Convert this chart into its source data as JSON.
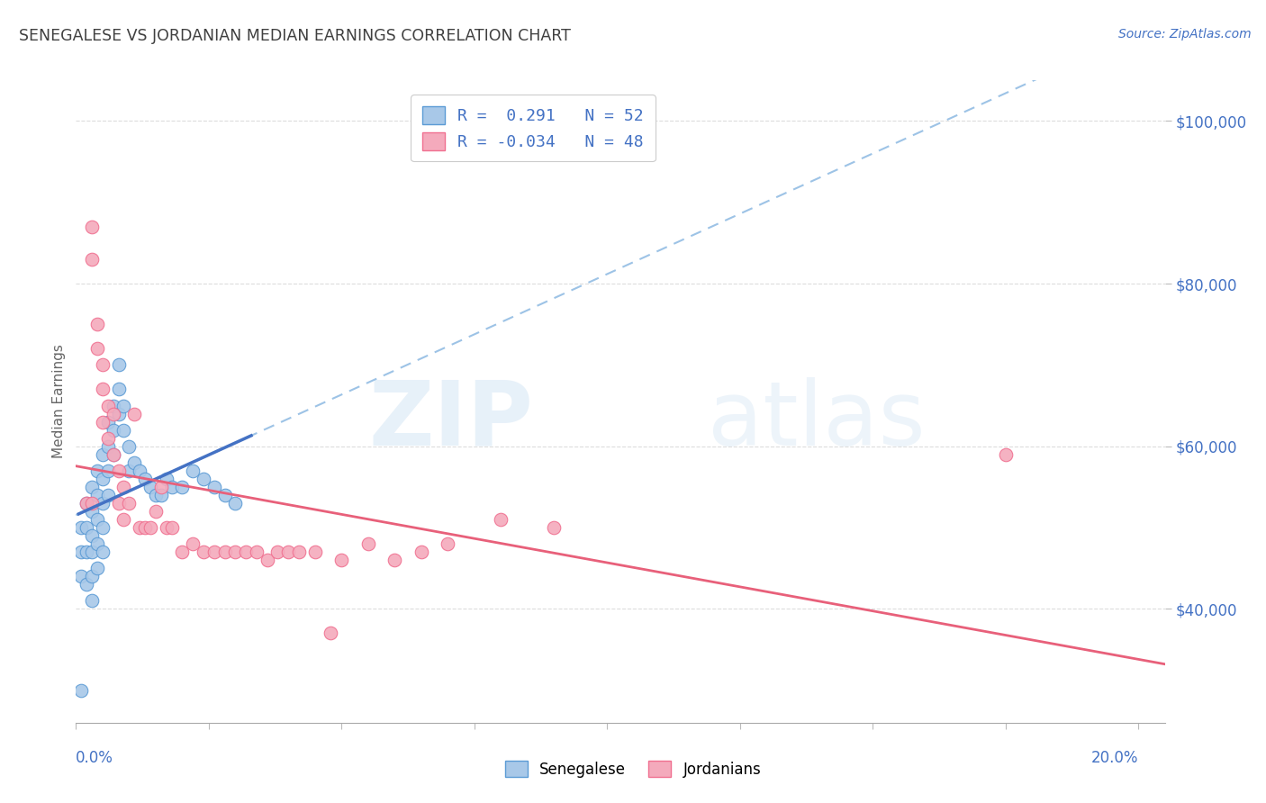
{
  "title": "SENEGALESE VS JORDANIAN MEDIAN EARNINGS CORRELATION CHART",
  "source": "Source: ZipAtlas.com",
  "ylabel": "Median Earnings",
  "xlim": [
    0.0,
    0.205
  ],
  "ylim": [
    26000,
    105000
  ],
  "yticks": [
    40000,
    60000,
    80000,
    100000
  ],
  "ytick_labels": [
    "$40,000",
    "$60,000",
    "$80,000",
    "$100,000"
  ],
  "xticks": [
    0.0,
    0.025,
    0.05,
    0.075,
    0.1,
    0.125,
    0.15,
    0.175,
    0.2
  ],
  "blue_color": "#A8C8E8",
  "pink_color": "#F4AABC",
  "blue_edge_color": "#5B9BD5",
  "pink_edge_color": "#F07090",
  "blue_line_color": "#4472C4",
  "pink_line_color": "#E8607A",
  "dashed_line_color": "#9DC3E6",
  "title_color": "#404040",
  "source_color": "#4472C4",
  "axis_label_color": "#4472C4",
  "legend_text_color": "#4472C4",
  "background_color": "#FFFFFF",
  "legend_r1": "R =  0.291   N = 52",
  "legend_r2": "R = -0.034   N = 48",
  "senegalese_x": [
    0.001,
    0.001,
    0.001,
    0.002,
    0.002,
    0.002,
    0.002,
    0.003,
    0.003,
    0.003,
    0.003,
    0.003,
    0.003,
    0.004,
    0.004,
    0.004,
    0.004,
    0.004,
    0.005,
    0.005,
    0.005,
    0.005,
    0.005,
    0.006,
    0.006,
    0.006,
    0.006,
    0.007,
    0.007,
    0.007,
    0.008,
    0.008,
    0.008,
    0.009,
    0.009,
    0.01,
    0.01,
    0.011,
    0.012,
    0.013,
    0.014,
    0.015,
    0.016,
    0.017,
    0.018,
    0.02,
    0.022,
    0.024,
    0.026,
    0.028,
    0.03,
    0.001
  ],
  "senegalese_y": [
    50000,
    47000,
    44000,
    53000,
    50000,
    47000,
    43000,
    55000,
    52000,
    49000,
    47000,
    44000,
    41000,
    57000,
    54000,
    51000,
    48000,
    45000,
    59000,
    56000,
    53000,
    50000,
    47000,
    63000,
    60000,
    57000,
    54000,
    65000,
    62000,
    59000,
    70000,
    67000,
    64000,
    65000,
    62000,
    60000,
    57000,
    58000,
    57000,
    56000,
    55000,
    54000,
    54000,
    56000,
    55000,
    55000,
    57000,
    56000,
    55000,
    54000,
    53000,
    30000
  ],
  "jordanian_x": [
    0.002,
    0.003,
    0.003,
    0.004,
    0.004,
    0.005,
    0.005,
    0.005,
    0.006,
    0.006,
    0.007,
    0.007,
    0.008,
    0.008,
    0.009,
    0.009,
    0.01,
    0.011,
    0.012,
    0.013,
    0.014,
    0.015,
    0.016,
    0.017,
    0.018,
    0.02,
    0.022,
    0.024,
    0.026,
    0.028,
    0.03,
    0.032,
    0.034,
    0.036,
    0.038,
    0.04,
    0.042,
    0.045,
    0.048,
    0.05,
    0.055,
    0.06,
    0.065,
    0.07,
    0.08,
    0.09,
    0.175,
    0.003
  ],
  "jordanian_y": [
    53000,
    87000,
    83000,
    75000,
    72000,
    70000,
    67000,
    63000,
    65000,
    61000,
    64000,
    59000,
    57000,
    53000,
    55000,
    51000,
    53000,
    64000,
    50000,
    50000,
    50000,
    52000,
    55000,
    50000,
    50000,
    47000,
    48000,
    47000,
    47000,
    47000,
    47000,
    47000,
    47000,
    46000,
    47000,
    47000,
    47000,
    47000,
    37000,
    46000,
    48000,
    46000,
    47000,
    48000,
    51000,
    50000,
    59000,
    53000
  ]
}
